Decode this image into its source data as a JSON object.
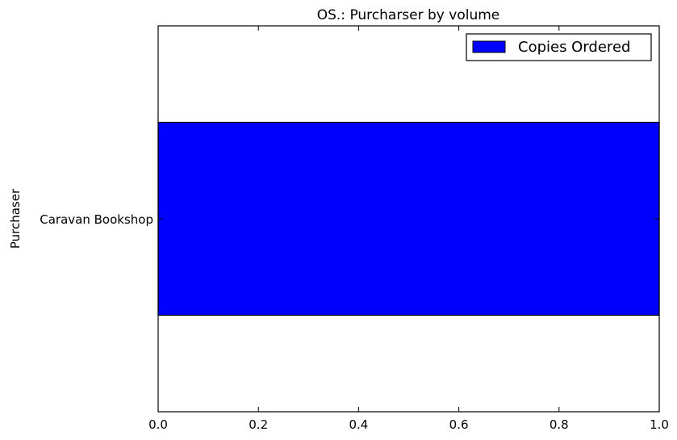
{
  "chart_data": {
    "type": "bar",
    "orientation": "horizontal",
    "title": "OS.: Purcharser by volume",
    "xlabel": "",
    "ylabel": "Purchaser",
    "categories": [
      "Caravan Bookshop"
    ],
    "series": [
      {
        "name": "Copies Ordered",
        "values": [
          1
        ],
        "color": "#0000ff"
      }
    ],
    "xlim": [
      0,
      1
    ],
    "xticks": [
      "0.0",
      "0.2",
      "0.4",
      "0.6",
      "0.8",
      "1.0"
    ],
    "xtick_values": [
      0,
      0.2,
      0.4,
      0.6,
      0.8,
      1.0
    ],
    "grid": false,
    "legend_position": "top-right"
  }
}
